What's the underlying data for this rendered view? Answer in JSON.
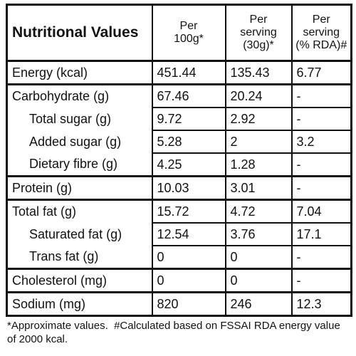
{
  "header": {
    "title": "Nutritional Values",
    "columns": [
      [
        "Per",
        "100g*"
      ],
      [
        "Per",
        "serving",
        "(30g)*"
      ],
      [
        "Per",
        "serving",
        "(% RDA)#"
      ]
    ]
  },
  "groups": [
    {
      "rows": [
        {
          "label": "Energy (kcal)",
          "values": [
            "451.44",
            "135.43",
            "6.77"
          ]
        }
      ]
    },
    {
      "rows": [
        {
          "label": "Carbohydrate (g)",
          "values": [
            "67.46",
            "20.24",
            "-"
          ]
        },
        {
          "label": "Total sugar (g)",
          "values": [
            "9.72",
            "2.92",
            "-"
          ]
        },
        {
          "label": "Added sugar (g)",
          "values": [
            "5.28",
            "2",
            "3.2"
          ]
        },
        {
          "label": "Dietary fibre (g)",
          "values": [
            "4.25",
            "1.28",
            "-"
          ]
        }
      ]
    },
    {
      "rows": [
        {
          "label": "Protein (g)",
          "values": [
            "10.03",
            "3.01",
            "-"
          ]
        }
      ]
    },
    {
      "rows": [
        {
          "label": "Total fat (g)",
          "values": [
            "15.72",
            "4.72",
            "7.04"
          ]
        },
        {
          "label": "Saturated fat (g)",
          "values": [
            "12.54",
            "3.76",
            "17.1"
          ]
        },
        {
          "label": "Trans fat (g)",
          "values": [
            "0",
            "0",
            "-"
          ]
        }
      ]
    },
    {
      "rows": [
        {
          "label": "Cholesterol (mg)",
          "values": [
            "0",
            "0",
            "-"
          ]
        }
      ]
    },
    {
      "rows": [
        {
          "label": "Sodium (mg)",
          "values": [
            "820",
            "246",
            "12.3"
          ]
        }
      ]
    }
  ],
  "footnote": [
    "*Approximate values.",
    "#Calculated based on FSSAI RDA energy value of 2000 kcal."
  ]
}
